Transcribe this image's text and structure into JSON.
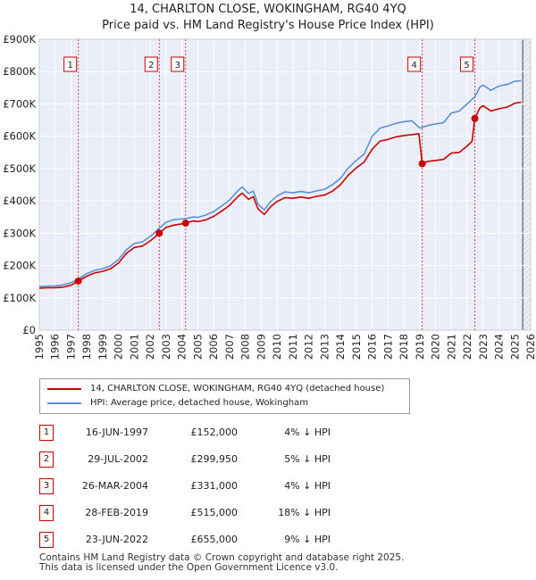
{
  "title_line1": "14, CHARLTON CLOSE, WOKINGHAM, RG40 4YQ",
  "title_line2": "Price paid vs. HM Land Registry's House Price Index (HPI)",
  "chart_data": {
    "type": "line",
    "x_range": [
      1995,
      2026
    ],
    "ylim": [
      0,
      900000
    ],
    "y_ticks": [
      0,
      100000,
      200000,
      300000,
      400000,
      500000,
      600000,
      700000,
      800000,
      900000
    ],
    "y_tick_labels": [
      "£0",
      "£100K",
      "£200K",
      "£300K",
      "£400K",
      "£500K",
      "£600K",
      "£700K",
      "£800K",
      "£900K"
    ],
    "x_ticks": [
      1995,
      1996,
      1997,
      1998,
      1999,
      2000,
      2001,
      2002,
      2003,
      2004,
      2005,
      2006,
      2007,
      2008,
      2009,
      2010,
      2011,
      2012,
      2013,
      2014,
      2015,
      2016,
      2017,
      2018,
      2019,
      2020,
      2021,
      2022,
      2023,
      2024,
      2025,
      2026
    ],
    "grid": true,
    "forecast_start": 2025.5,
    "series": [
      {
        "name": "14, CHARLTON CLOSE, WOKINGHAM, RG40 4YQ (detached house)",
        "color": "#cc0000",
        "points": [
          [
            1995.0,
            130000
          ],
          [
            1995.5,
            131000
          ],
          [
            1996.0,
            131500
          ],
          [
            1996.5,
            133000
          ],
          [
            1997.0,
            139000
          ],
          [
            1997.46,
            152000
          ],
          [
            1998.0,
            167000
          ],
          [
            1998.5,
            177000
          ],
          [
            1999.0,
            182000
          ],
          [
            1999.5,
            190000
          ],
          [
            2000.0,
            208000
          ],
          [
            2000.5,
            238000
          ],
          [
            2001.0,
            256000
          ],
          [
            2001.5,
            260000
          ],
          [
            2002.0,
            276000
          ],
          [
            2002.57,
            299950
          ],
          [
            2003.0,
            318000
          ],
          [
            2003.5,
            325000
          ],
          [
            2004.23,
            331000
          ],
          [
            2004.7,
            338000
          ],
          [
            2005.0,
            336000
          ],
          [
            2005.5,
            341000
          ],
          [
            2006.0,
            352000
          ],
          [
            2006.5,
            368000
          ],
          [
            2007.0,
            386000
          ],
          [
            2007.5,
            412000
          ],
          [
            2007.8,
            424000
          ],
          [
            2008.2,
            405000
          ],
          [
            2008.5,
            413000
          ],
          [
            2008.8,
            375000
          ],
          [
            2009.2,
            358000
          ],
          [
            2009.6,
            382000
          ],
          [
            2010.0,
            398000
          ],
          [
            2010.5,
            410000
          ],
          [
            2011.0,
            408000
          ],
          [
            2011.5,
            412000
          ],
          [
            2012.0,
            408000
          ],
          [
            2012.5,
            414000
          ],
          [
            2013.0,
            418000
          ],
          [
            2013.5,
            430000
          ],
          [
            2014.0,
            450000
          ],
          [
            2014.5,
            480000
          ],
          [
            2015.0,
            502000
          ],
          [
            2015.5,
            520000
          ],
          [
            2016.0,
            560000
          ],
          [
            2016.5,
            585000
          ],
          [
            2017.0,
            590000
          ],
          [
            2017.5,
            598000
          ],
          [
            2018.0,
            602000
          ],
          [
            2018.5,
            605000
          ],
          [
            2018.95,
            608000
          ],
          [
            2019.16,
            515000
          ],
          [
            2019.5,
            522000
          ],
          [
            2020.0,
            525000
          ],
          [
            2020.5,
            528000
          ],
          [
            2021.0,
            548000
          ],
          [
            2021.5,
            550000
          ],
          [
            2022.0,
            570000
          ],
          [
            2022.3,
            584000
          ],
          [
            2022.48,
            655000
          ],
          [
            2022.8,
            688000
          ],
          [
            2023.0,
            694000
          ],
          [
            2023.5,
            678000
          ],
          [
            2024.0,
            685000
          ],
          [
            2024.5,
            690000
          ],
          [
            2025.0,
            702000
          ],
          [
            2025.4,
            705000
          ]
        ]
      },
      {
        "name": "HPI: Average price, detached house, Wokingham",
        "color": "#5b8fd6",
        "points": [
          [
            1995.0,
            135000
          ],
          [
            1995.5,
            136000
          ],
          [
            1996.0,
            137000
          ],
          [
            1996.5,
            140000
          ],
          [
            1997.0,
            147000
          ],
          [
            1997.46,
            158000
          ],
          [
            1998.0,
            175000
          ],
          [
            1998.5,
            185000
          ],
          [
            1999.0,
            190000
          ],
          [
            1999.5,
            199000
          ],
          [
            2000.0,
            219000
          ],
          [
            2000.5,
            249000
          ],
          [
            2001.0,
            268000
          ],
          [
            2001.5,
            273000
          ],
          [
            2002.0,
            290000
          ],
          [
            2002.57,
            315000
          ],
          [
            2003.0,
            334000
          ],
          [
            2003.5,
            342000
          ],
          [
            2004.23,
            345000
          ],
          [
            2004.7,
            350000
          ],
          [
            2005.0,
            349000
          ],
          [
            2005.5,
            356000
          ],
          [
            2006.0,
            367000
          ],
          [
            2006.5,
            384000
          ],
          [
            2007.0,
            402000
          ],
          [
            2007.5,
            430000
          ],
          [
            2007.8,
            443000
          ],
          [
            2008.2,
            423000
          ],
          [
            2008.5,
            430000
          ],
          [
            2008.8,
            390000
          ],
          [
            2009.2,
            372000
          ],
          [
            2009.6,
            398000
          ],
          [
            2010.0,
            415000
          ],
          [
            2010.5,
            428000
          ],
          [
            2011.0,
            425000
          ],
          [
            2011.5,
            429000
          ],
          [
            2012.0,
            425000
          ],
          [
            2012.5,
            431000
          ],
          [
            2013.0,
            436000
          ],
          [
            2013.5,
            450000
          ],
          [
            2014.0,
            470000
          ],
          [
            2014.5,
            502000
          ],
          [
            2015.0,
            525000
          ],
          [
            2015.5,
            545000
          ],
          [
            2016.0,
            600000
          ],
          [
            2016.5,
            625000
          ],
          [
            2017.0,
            632000
          ],
          [
            2017.5,
            640000
          ],
          [
            2018.0,
            645000
          ],
          [
            2018.5,
            648000
          ],
          [
            2019.0,
            625000
          ],
          [
            2019.5,
            633000
          ],
          [
            2020.0,
            638000
          ],
          [
            2020.5,
            642000
          ],
          [
            2021.0,
            672000
          ],
          [
            2021.5,
            678000
          ],
          [
            2022.0,
            700000
          ],
          [
            2022.48,
            722000
          ],
          [
            2022.8,
            752000
          ],
          [
            2023.0,
            758000
          ],
          [
            2023.5,
            742000
          ],
          [
            2024.0,
            755000
          ],
          [
            2024.5,
            760000
          ],
          [
            2025.0,
            770000
          ],
          [
            2025.4,
            772000
          ]
        ]
      }
    ],
    "sales": [
      {
        "id": "1",
        "x": 1997.46,
        "y": 152000
      },
      {
        "id": "2",
        "x": 2002.57,
        "y": 299950
      },
      {
        "id": "3",
        "x": 2004.23,
        "y": 331000
      },
      {
        "id": "4",
        "x": 2019.16,
        "y": 515000
      },
      {
        "id": "5",
        "x": 2022.48,
        "y": 655000
      }
    ]
  },
  "legend": {
    "red_label": "14, CHARLTON CLOSE, WOKINGHAM, RG40 4YQ (detached house)",
    "blue_label": "HPI: Average price, detached house, Wokingham"
  },
  "transactions": [
    {
      "id": "1",
      "date": "16-JUN-1997",
      "price": "£152,000",
      "hpi": "4% ↓ HPI"
    },
    {
      "id": "2",
      "date": "29-JUL-2002",
      "price": "£299,950",
      "hpi": "5% ↓ HPI"
    },
    {
      "id": "3",
      "date": "26-MAR-2004",
      "price": "£331,000",
      "hpi": "4% ↓ HPI"
    },
    {
      "id": "4",
      "date": "28-FEB-2019",
      "price": "£515,000",
      "hpi": "18% ↓ HPI"
    },
    {
      "id": "5",
      "date": "23-JUN-2022",
      "price": "£655,000",
      "hpi": "9% ↓ HPI"
    }
  ],
  "footer_line1": "Contains HM Land Registry data © Crown copyright and database right 2025.",
  "footer_line2": "This data is licensed under the Open Government Licence v3.0."
}
